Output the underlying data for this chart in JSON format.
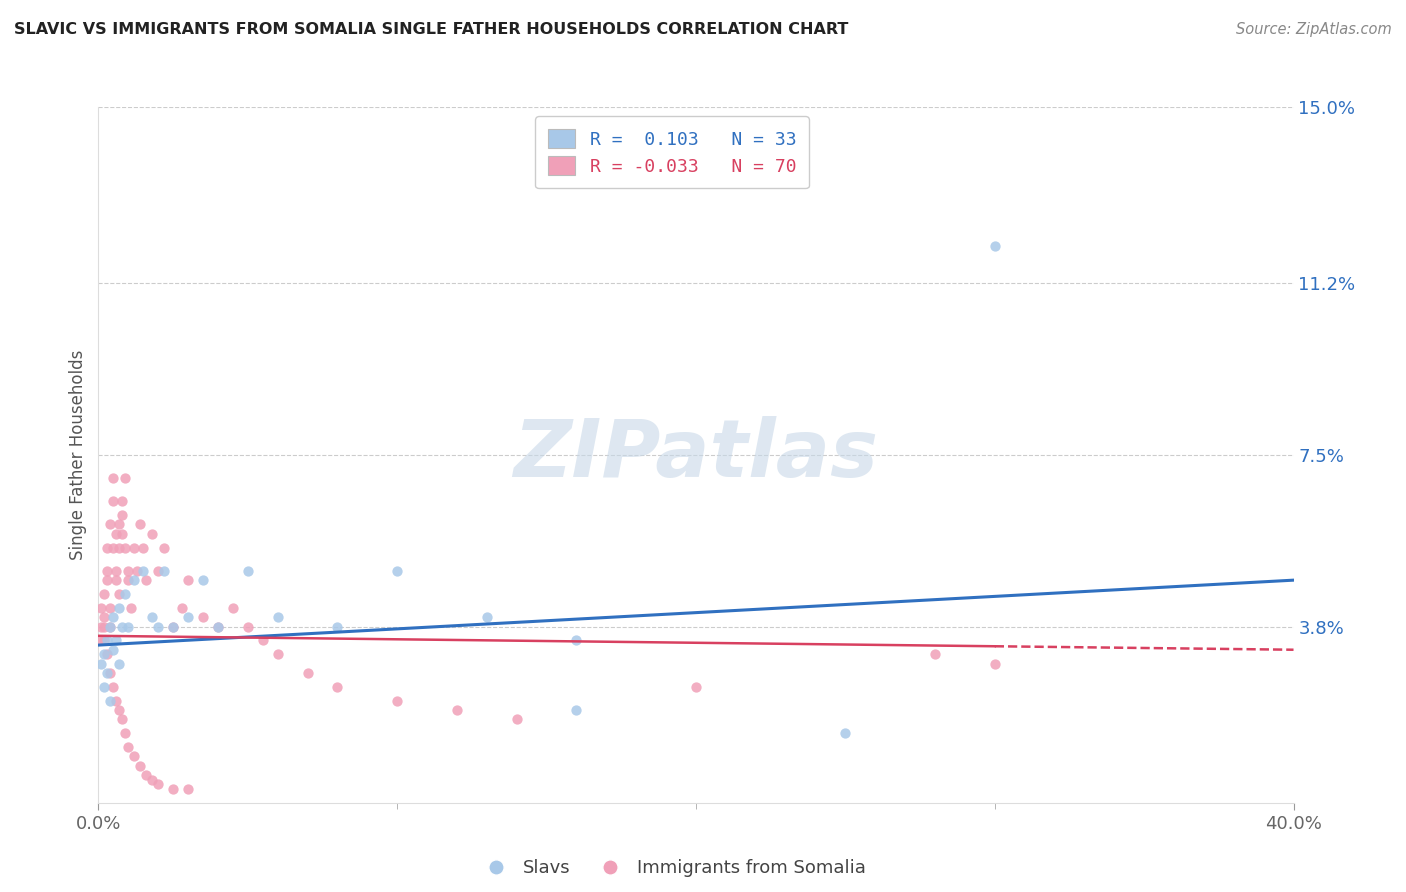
{
  "title": "SLAVIC VS IMMIGRANTS FROM SOMALIA SINGLE FATHER HOUSEHOLDS CORRELATION CHART",
  "source_text": "Source: ZipAtlas.com",
  "ylabel": "Single Father Households",
  "xlim": [
    0.0,
    0.4
  ],
  "ylim": [
    0.0,
    0.15
  ],
  "yticks": [
    0.038,
    0.075,
    0.112,
    0.15
  ],
  "ytick_labels": [
    "3.8%",
    "7.5%",
    "11.2%",
    "15.0%"
  ],
  "xticks": [
    0.0,
    0.4
  ],
  "xtick_labels": [
    "0.0%",
    "40.0%"
  ],
  "slavs_R": 0.103,
  "slavs_N": 33,
  "somalia_R": -0.033,
  "somalia_N": 70,
  "slavs_color": "#a8c8e8",
  "somalia_color": "#f0a0b8",
  "slavs_line_color": "#3070c0",
  "somalia_line_color": "#d84060",
  "background_color": "#ffffff",
  "slavs_line_start_y": 0.034,
  "slavs_line_end_y": 0.048,
  "somalia_line_start_y": 0.036,
  "somalia_line_end_y": 0.033,
  "slavs_x": [
    0.001,
    0.002,
    0.002,
    0.003,
    0.003,
    0.004,
    0.004,
    0.005,
    0.005,
    0.006,
    0.007,
    0.007,
    0.008,
    0.009,
    0.01,
    0.012,
    0.015,
    0.018,
    0.02,
    0.022,
    0.025,
    0.03,
    0.035,
    0.04,
    0.05,
    0.06,
    0.08,
    0.1,
    0.13,
    0.16,
    0.25,
    0.3,
    0.16
  ],
  "slavs_y": [
    0.03,
    0.032,
    0.025,
    0.035,
    0.028,
    0.038,
    0.022,
    0.04,
    0.033,
    0.035,
    0.03,
    0.042,
    0.038,
    0.045,
    0.038,
    0.048,
    0.05,
    0.04,
    0.038,
    0.05,
    0.038,
    0.04,
    0.048,
    0.038,
    0.05,
    0.04,
    0.038,
    0.05,
    0.04,
    0.02,
    0.015,
    0.12,
    0.035
  ],
  "somalia_x": [
    0.001,
    0.001,
    0.001,
    0.002,
    0.002,
    0.002,
    0.003,
    0.003,
    0.003,
    0.004,
    0.004,
    0.004,
    0.005,
    0.005,
    0.005,
    0.006,
    0.006,
    0.006,
    0.007,
    0.007,
    0.007,
    0.008,
    0.008,
    0.008,
    0.009,
    0.009,
    0.01,
    0.01,
    0.011,
    0.012,
    0.013,
    0.014,
    0.015,
    0.016,
    0.018,
    0.02,
    0.022,
    0.025,
    0.028,
    0.03,
    0.035,
    0.04,
    0.045,
    0.05,
    0.055,
    0.06,
    0.07,
    0.08,
    0.1,
    0.12,
    0.14,
    0.2,
    0.28,
    0.002,
    0.003,
    0.004,
    0.005,
    0.006,
    0.007,
    0.008,
    0.009,
    0.01,
    0.012,
    0.014,
    0.016,
    0.018,
    0.02,
    0.025,
    0.03,
    0.3
  ],
  "somalia_y": [
    0.038,
    0.035,
    0.042,
    0.04,
    0.045,
    0.038,
    0.05,
    0.055,
    0.048,
    0.042,
    0.06,
    0.038,
    0.07,
    0.055,
    0.065,
    0.058,
    0.05,
    0.048,
    0.06,
    0.055,
    0.045,
    0.062,
    0.058,
    0.065,
    0.055,
    0.07,
    0.05,
    0.048,
    0.042,
    0.055,
    0.05,
    0.06,
    0.055,
    0.048,
    0.058,
    0.05,
    0.055,
    0.038,
    0.042,
    0.048,
    0.04,
    0.038,
    0.042,
    0.038,
    0.035,
    0.032,
    0.028,
    0.025,
    0.022,
    0.02,
    0.018,
    0.025,
    0.032,
    0.035,
    0.032,
    0.028,
    0.025,
    0.022,
    0.02,
    0.018,
    0.015,
    0.012,
    0.01,
    0.008,
    0.006,
    0.005,
    0.004,
    0.003,
    0.003,
    0.03
  ]
}
